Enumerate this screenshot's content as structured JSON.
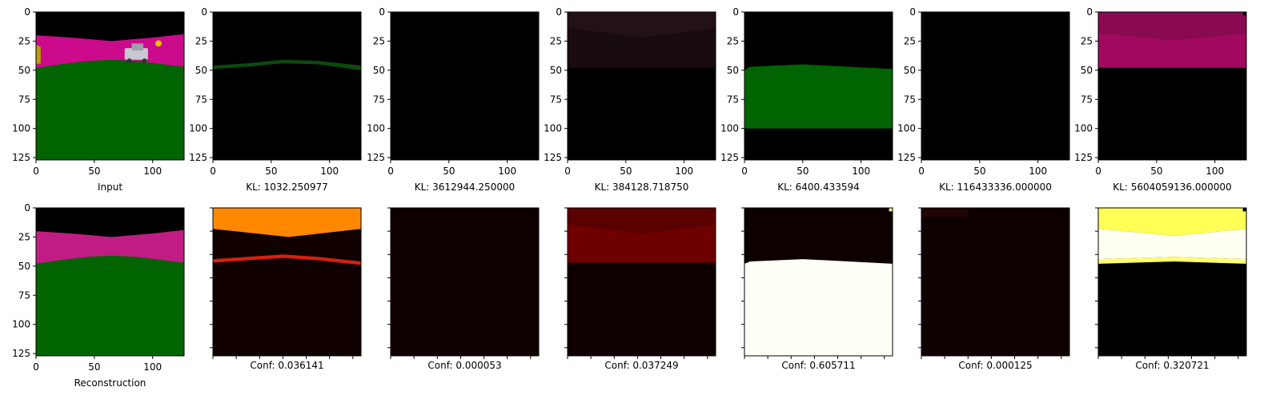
{
  "figure": {
    "type": "image-grid",
    "rows": 2,
    "cols": 7
  },
  "chart_data": [
    {
      "type": "heatmap",
      "row": 0,
      "col": 0,
      "xlabel": "Input",
      "image": "input-scene",
      "xticks": [
        0,
        50,
        100
      ],
      "yticks": [
        0,
        25,
        50,
        75,
        100,
        125
      ],
      "xlim": [
        0,
        127
      ],
      "ylim": [
        127,
        0
      ]
    },
    {
      "type": "heatmap",
      "row": 0,
      "col": 1,
      "xlabel": "KL: 1032.250977",
      "image": "mask-green-horizon",
      "xticks": [
        0,
        50,
        100
      ],
      "yticks": [
        0,
        25,
        50,
        75,
        100,
        125
      ],
      "xlim": [
        0,
        127
      ],
      "ylim": [
        127,
        0
      ]
    },
    {
      "type": "heatmap",
      "row": 0,
      "col": 2,
      "xlabel": "KL: 3612944.250000",
      "image": "mask-empty",
      "xticks": [
        0,
        50,
        100
      ],
      "yticks": [
        0,
        25,
        50,
        75,
        100,
        125
      ],
      "xlim": [
        0,
        127
      ],
      "ylim": [
        127,
        0
      ]
    },
    {
      "type": "heatmap",
      "row": 0,
      "col": 3,
      "xlabel": "KL: 384128.718750",
      "image": "mask-dark-sky",
      "xticks": [
        0,
        50,
        100
      ],
      "yticks": [
        0,
        25,
        50,
        75,
        100,
        125
      ],
      "xlim": [
        0,
        127
      ],
      "ylim": [
        127,
        0
      ]
    },
    {
      "type": "heatmap",
      "row": 0,
      "col": 4,
      "xlabel": "KL: 6400.433594",
      "image": "mask-green-ground",
      "xticks": [
        0,
        50,
        100
      ],
      "yticks": [
        0,
        25,
        50,
        75,
        100,
        125
      ],
      "xlim": [
        0,
        127
      ],
      "ylim": [
        127,
        0
      ]
    },
    {
      "type": "heatmap",
      "row": 0,
      "col": 5,
      "xlabel": "KL: 116433336.000000",
      "image": "mask-empty",
      "xticks": [
        0,
        50,
        100
      ],
      "yticks": [
        0,
        25,
        50,
        75,
        100,
        125
      ],
      "xlim": [
        0,
        127
      ],
      "ylim": [
        127,
        0
      ]
    },
    {
      "type": "heatmap",
      "row": 0,
      "col": 6,
      "xlabel": "KL: 5604059136.000000",
      "image": "mask-magenta-sky",
      "xticks": [
        0,
        50,
        100
      ],
      "yticks": [
        0,
        25,
        50,
        75,
        100,
        125
      ],
      "xlim": [
        0,
        127
      ],
      "ylim": [
        127,
        0
      ]
    },
    {
      "type": "heatmap",
      "row": 1,
      "col": 0,
      "xlabel": "Reconstruction",
      "image": "reconstruction-scene",
      "xticks": [
        0,
        50,
        100
      ],
      "yticks": [
        0,
        25,
        50,
        75,
        100,
        125
      ],
      "xlim": [
        0,
        127
      ],
      "ylim": [
        127,
        0
      ]
    },
    {
      "type": "heatmap",
      "row": 1,
      "col": 1,
      "xlabel": "Conf: 0.036141",
      "image": "conf-orange-sky",
      "colormap": "hot"
    },
    {
      "type": "heatmap",
      "row": 1,
      "col": 2,
      "xlabel": "Conf: 0.000053",
      "image": "conf-empty",
      "colormap": "hot"
    },
    {
      "type": "heatmap",
      "row": 1,
      "col": 3,
      "xlabel": "Conf: 0.037249",
      "image": "conf-red-sky",
      "colormap": "hot"
    },
    {
      "type": "heatmap",
      "row": 1,
      "col": 4,
      "xlabel": "Conf: 0.605711",
      "image": "conf-white-ground",
      "colormap": "hot"
    },
    {
      "type": "heatmap",
      "row": 1,
      "col": 5,
      "xlabel": "Conf: 0.000125",
      "image": "conf-empty-specks",
      "colormap": "hot"
    },
    {
      "type": "heatmap",
      "row": 1,
      "col": 6,
      "xlabel": "Conf: 0.320721",
      "image": "conf-yellow-sky",
      "colormap": "hot"
    }
  ],
  "colors": {
    "sky_magenta": "#cc0a8c",
    "ground_green": "#006400",
    "black": "#000000",
    "orange": "#ff8800",
    "dark_red": "#6e0000",
    "white": "#fffff8",
    "yellow": "#ffff55"
  }
}
